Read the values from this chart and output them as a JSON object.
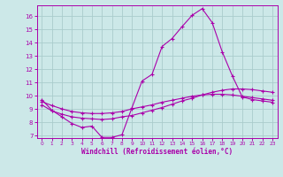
{
  "background_color": "#cce8e8",
  "grid_color": "#aacccc",
  "line_color": "#aa00aa",
  "xlabel": "Windchill (Refroidissement éolien,°C)",
  "xlim": [
    -0.5,
    23.5
  ],
  "ylim": [
    6.8,
    16.8
  ],
  "yticks": [
    7,
    8,
    9,
    10,
    11,
    12,
    13,
    14,
    15,
    16
  ],
  "xticks": [
    0,
    1,
    2,
    3,
    4,
    5,
    6,
    7,
    8,
    9,
    10,
    11,
    12,
    13,
    14,
    15,
    16,
    17,
    18,
    19,
    20,
    21,
    22,
    23
  ],
  "line1_x": [
    0,
    1,
    2,
    3,
    4,
    5,
    6,
    7,
    8,
    9,
    10,
    11,
    12,
    13,
    14,
    15,
    16,
    17,
    18,
    19,
    20,
    21,
    22,
    23
  ],
  "line1_y": [
    9.7,
    8.9,
    8.4,
    7.9,
    7.6,
    7.7,
    6.85,
    6.85,
    7.05,
    9.1,
    11.1,
    11.6,
    13.7,
    14.3,
    15.2,
    16.05,
    16.55,
    15.5,
    13.3,
    11.5,
    9.9,
    9.7,
    9.6,
    9.5
  ],
  "line2_x": [
    0,
    1,
    2,
    3,
    4,
    5,
    6,
    7,
    8,
    9,
    10,
    11,
    12,
    13,
    14,
    15,
    16,
    17,
    18,
    19,
    20,
    21,
    22,
    23
  ],
  "line2_y": [
    9.3,
    8.85,
    8.6,
    8.4,
    8.3,
    8.25,
    8.2,
    8.25,
    8.4,
    8.5,
    8.7,
    8.9,
    9.1,
    9.35,
    9.6,
    9.8,
    10.05,
    10.25,
    10.4,
    10.5,
    10.5,
    10.45,
    10.35,
    10.25
  ],
  "line3_x": [
    0,
    1,
    2,
    3,
    4,
    5,
    6,
    7,
    8,
    9,
    10,
    11,
    12,
    13,
    14,
    15,
    16,
    17,
    18,
    19,
    20,
    21,
    22,
    23
  ],
  "line3_y": [
    9.55,
    9.25,
    9.0,
    8.8,
    8.7,
    8.65,
    8.65,
    8.7,
    8.8,
    9.0,
    9.15,
    9.3,
    9.5,
    9.65,
    9.8,
    9.95,
    10.05,
    10.1,
    10.1,
    10.05,
    9.95,
    9.85,
    9.75,
    9.65
  ]
}
